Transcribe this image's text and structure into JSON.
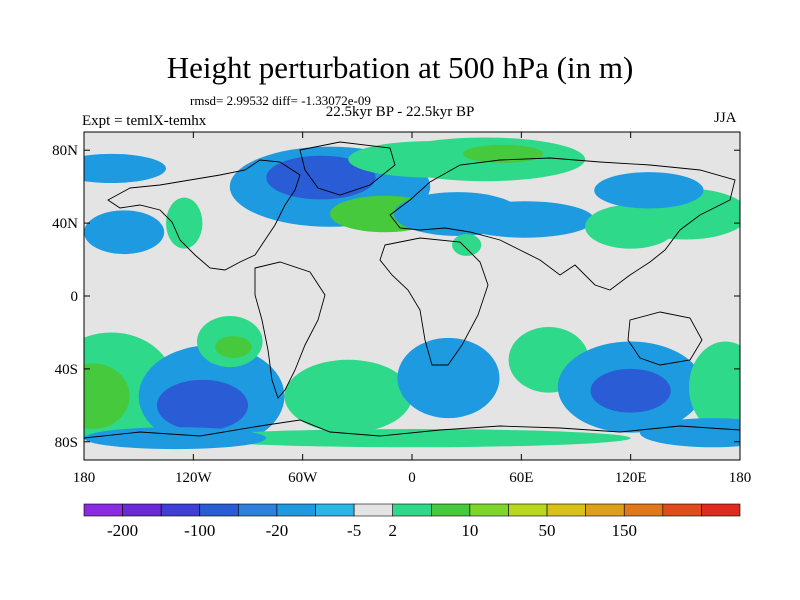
{
  "chart_data": {
    "type": "heatmap",
    "title": "Height perturbation at 500 hPa (in m)",
    "stats_line": "rmsd= 2.99532 diff= -1.33072e-09",
    "period": "22.5kyr BP - 22.5kyr BP",
    "experiment": "Expt = temlX-temhx",
    "season": "JJA",
    "x_ticks": [
      "180",
      "120W",
      "60W",
      "0",
      "60E",
      "120E",
      "180"
    ],
    "y_ticks": [
      "80N",
      "40N",
      "0",
      "40S",
      "80S"
    ],
    "colorbar_labels": [
      "-200",
      "-100",
      "-20",
      "-5",
      "2",
      "10",
      "50",
      "150"
    ],
    "colorbar_colors": [
      "#8a2be2",
      "#6a2ad6",
      "#3f3fd8",
      "#2a5cd6",
      "#2f7fdc",
      "#1e9be0",
      "#2bb6e6",
      "#e4e4e4",
      "#2fd98a",
      "#46c93c",
      "#7fd62a",
      "#b9d81c",
      "#d8c21a",
      "#dca01a",
      "#e0781a",
      "#e04c1c",
      "#e02a20"
    ],
    "contour_blobs": [
      {
        "lon": -165,
        "lat": 70,
        "rx": 30,
        "ry": 8,
        "level": "-5"
      },
      {
        "lon": -158,
        "lat": 35,
        "rx": 22,
        "ry": 12,
        "level": "-5"
      },
      {
        "lon": -125,
        "lat": 40,
        "rx": 10,
        "ry": 14,
        "level": "2"
      },
      {
        "lon": -45,
        "lat": 60,
        "rx": 55,
        "ry": 22,
        "level": "-5"
      },
      {
        "lon": -50,
        "lat": 65,
        "rx": 30,
        "ry": 12,
        "level": "-20"
      },
      {
        "lon": 10,
        "lat": 75,
        "rx": 45,
        "ry": 10,
        "level": "2"
      },
      {
        "lon": 40,
        "lat": 75,
        "rx": 55,
        "ry": 12,
        "level": "2"
      },
      {
        "lon": 50,
        "lat": 78,
        "rx": 22,
        "ry": 5,
        "level": "10"
      },
      {
        "lon": -15,
        "lat": 45,
        "rx": 30,
        "ry": 10,
        "level": "10"
      },
      {
        "lon": 25,
        "lat": 45,
        "rx": 35,
        "ry": 12,
        "level": "-5"
      },
      {
        "lon": 62,
        "lat": 42,
        "rx": 38,
        "ry": 10,
        "level": "-5"
      },
      {
        "lon": 120,
        "lat": 38,
        "rx": 25,
        "ry": 12,
        "level": "2"
      },
      {
        "lon": 150,
        "lat": 45,
        "rx": 35,
        "ry": 14,
        "level": "2"
      },
      {
        "lon": 130,
        "lat": 58,
        "rx": 30,
        "ry": 10,
        "level": "-5"
      },
      {
        "lon": 30,
        "lat": 28,
        "rx": 8,
        "ry": 6,
        "level": "2"
      },
      {
        "lon": -165,
        "lat": -50,
        "rx": 35,
        "ry": 30,
        "level": "2"
      },
      {
        "lon": -175,
        "lat": -55,
        "rx": 20,
        "ry": 18,
        "level": "10"
      },
      {
        "lon": -110,
        "lat": -55,
        "rx": 40,
        "ry": 28,
        "level": "-5"
      },
      {
        "lon": -115,
        "lat": -60,
        "rx": 25,
        "ry": 14,
        "level": "-20"
      },
      {
        "lon": -100,
        "lat": -25,
        "rx": 18,
        "ry": 14,
        "level": "2"
      },
      {
        "lon": -98,
        "lat": -28,
        "rx": 10,
        "ry": 6,
        "level": "10"
      },
      {
        "lon": -35,
        "lat": -55,
        "rx": 35,
        "ry": 20,
        "level": "2"
      },
      {
        "lon": 20,
        "lat": -45,
        "rx": 28,
        "ry": 22,
        "level": "-5"
      },
      {
        "lon": 75,
        "lat": -35,
        "rx": 22,
        "ry": 18,
        "level": "2"
      },
      {
        "lon": 120,
        "lat": -50,
        "rx": 40,
        "ry": 25,
        "level": "-5"
      },
      {
        "lon": 120,
        "lat": -52,
        "rx": 22,
        "ry": 12,
        "level": "-20"
      },
      {
        "lon": 172,
        "lat": -50,
        "rx": 20,
        "ry": 25,
        "level": "2"
      },
      {
        "lon": 0,
        "lat": -78,
        "rx": 120,
        "ry": 5,
        "level": "2"
      },
      {
        "lon": -130,
        "lat": -78,
        "rx": 50,
        "ry": 6,
        "level": "-5"
      },
      {
        "lon": 165,
        "lat": -75,
        "rx": 40,
        "ry": 8,
        "level": "-5"
      }
    ]
  }
}
